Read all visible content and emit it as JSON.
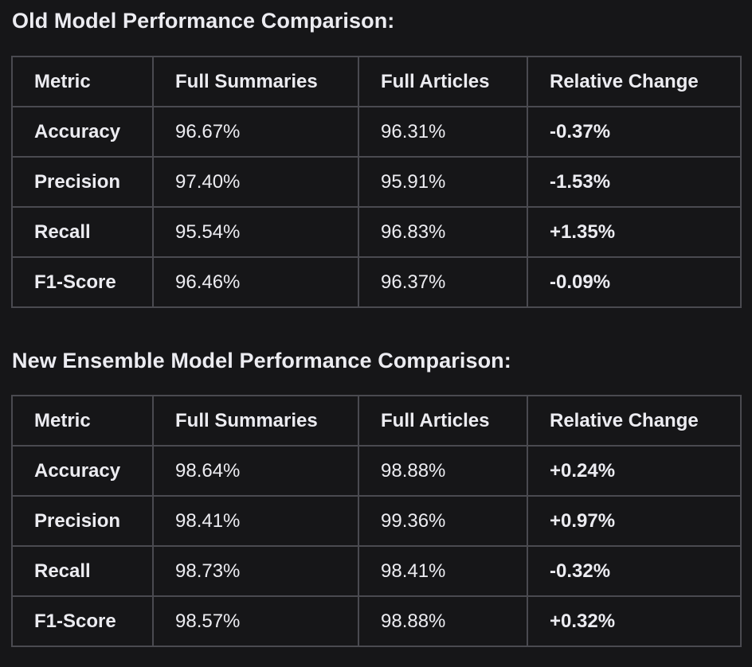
{
  "sections": [
    {
      "title": "Old Model Performance Comparison:",
      "columns": [
        "Metric",
        "Full Summaries",
        "Full Articles",
        "Relative Change"
      ],
      "rows": [
        [
          "Accuracy",
          "96.67%",
          "96.31%",
          "-0.37%"
        ],
        [
          "Precision",
          "97.40%",
          "95.91%",
          "-1.53%"
        ],
        [
          "Recall",
          "95.54%",
          "96.83%",
          "+1.35%"
        ],
        [
          "F1-Score",
          "96.46%",
          "96.37%",
          "-0.09%"
        ]
      ]
    },
    {
      "title": "New Ensemble Model Performance Comparison:",
      "columns": [
        "Metric",
        "Full Summaries",
        "Full Articles",
        "Relative Change"
      ],
      "rows": [
        [
          "Accuracy",
          "98.64%",
          "98.88%",
          "+0.24%"
        ],
        [
          "Precision",
          "98.41%",
          "99.36%",
          "+0.97%"
        ],
        [
          "Recall",
          "98.73%",
          "98.41%",
          "-0.32%"
        ],
        [
          "F1-Score",
          "98.57%",
          "98.88%",
          "+0.32%"
        ]
      ]
    }
  ]
}
